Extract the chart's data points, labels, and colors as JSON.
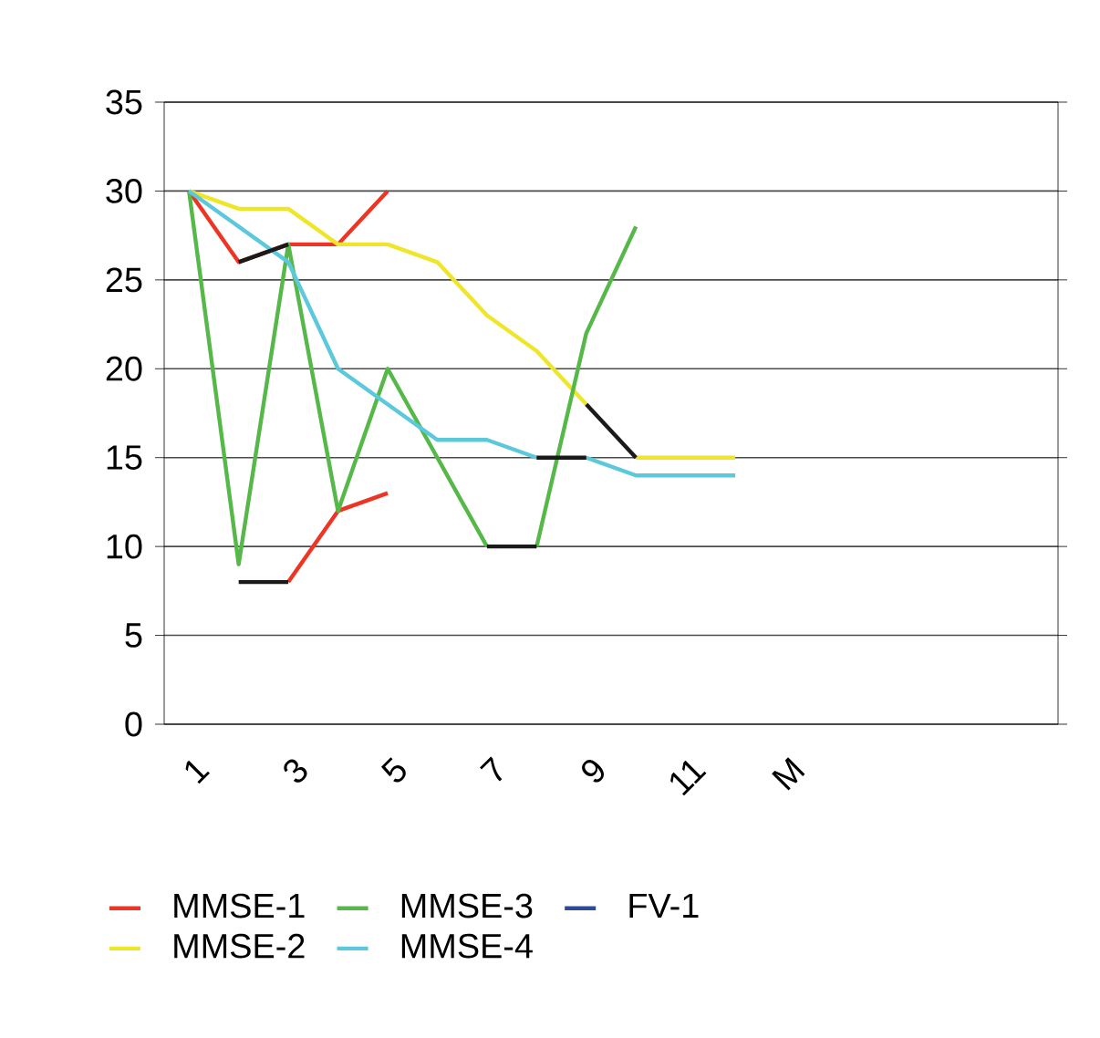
{
  "chart_data": {
    "type": "line",
    "categories": [
      "1",
      null,
      "3",
      null,
      "5",
      null,
      "7",
      null,
      "9",
      null,
      "11",
      null,
      "M",
      null,
      null,
      null,
      null,
      null
    ],
    "ylim": [
      0,
      35
    ],
    "yticks": [
      0,
      5,
      10,
      15,
      20,
      25,
      30,
      35
    ],
    "grid": "y",
    "legend": "bottom",
    "series": [
      {
        "name": "MMSE-1",
        "color": "#ee3524",
        "values": [
          30,
          26,
          27,
          27,
          30,
          null,
          null,
          null,
          null,
          null,
          null,
          null,
          null,
          null,
          null,
          null,
          null,
          null
        ]
      },
      {
        "color": "#ee3524",
        "values": [
          null,
          null,
          8,
          12,
          13,
          null,
          null,
          null,
          null,
          null,
          null,
          null,
          null,
          null,
          null,
          null,
          null,
          null
        ]
      },
      {
        "name": "MMSE-2",
        "color": "#f0e629",
        "values": [
          30,
          29,
          29,
          27,
          27,
          26,
          23,
          21,
          18,
          null,
          null,
          null,
          null,
          null,
          null,
          null,
          null,
          null
        ]
      },
      {
        "color": "#f0e629",
        "values": [
          null,
          null,
          null,
          null,
          null,
          null,
          null,
          null,
          null,
          15,
          15,
          15,
          null,
          null,
          null,
          null,
          null,
          null
        ]
      },
      {
        "name": "MMSE-3",
        "color": "#55b848",
        "values": [
          30,
          9,
          27,
          12,
          20,
          15,
          10,
          null,
          null,
          null,
          null,
          null,
          null,
          null,
          null,
          null,
          null,
          null
        ]
      },
      {
        "color": "#55b848",
        "values": [
          null,
          null,
          null,
          null,
          null,
          null,
          null,
          10,
          22,
          28,
          null,
          null,
          null,
          null,
          null,
          null,
          null,
          null
        ]
      },
      {
        "name": "MMSE-4",
        "color": "#5bc8dc",
        "values": [
          30,
          28,
          26,
          20,
          18,
          16,
          16,
          15,
          null,
          null,
          null,
          null,
          null,
          null,
          null,
          null,
          null,
          null
        ]
      },
      {
        "color": "#5bc8dc",
        "values": [
          null,
          null,
          null,
          null,
          null,
          null,
          null,
          null,
          15,
          14,
          14,
          14,
          null,
          null,
          null,
          null,
          null,
          null
        ]
      },
      {
        "name": "FV-1",
        "color": "#2e4a9e",
        "values": [
          null,
          null,
          null,
          null,
          null,
          null,
          null,
          null,
          null,
          null,
          null,
          null,
          null,
          null,
          null,
          null,
          null,
          null
        ]
      },
      {
        "color": "#1a1a1a",
        "values": [
          null,
          26,
          27,
          null,
          null,
          null,
          10,
          10,
          null,
          null,
          null,
          null,
          null,
          null,
          null,
          null,
          null,
          null
        ]
      },
      {
        "color": "#1a1a1a",
        "values": [
          null,
          8,
          8,
          null,
          null,
          null,
          null,
          15,
          15,
          null,
          null,
          null,
          null,
          null,
          null,
          null,
          null,
          null
        ]
      },
      {
        "color": "#1a1a1a",
        "values": [
          null,
          null,
          null,
          null,
          null,
          null,
          null,
          null,
          18,
          15,
          null,
          null,
          null,
          null,
          null,
          null,
          null,
          null
        ]
      }
    ]
  }
}
